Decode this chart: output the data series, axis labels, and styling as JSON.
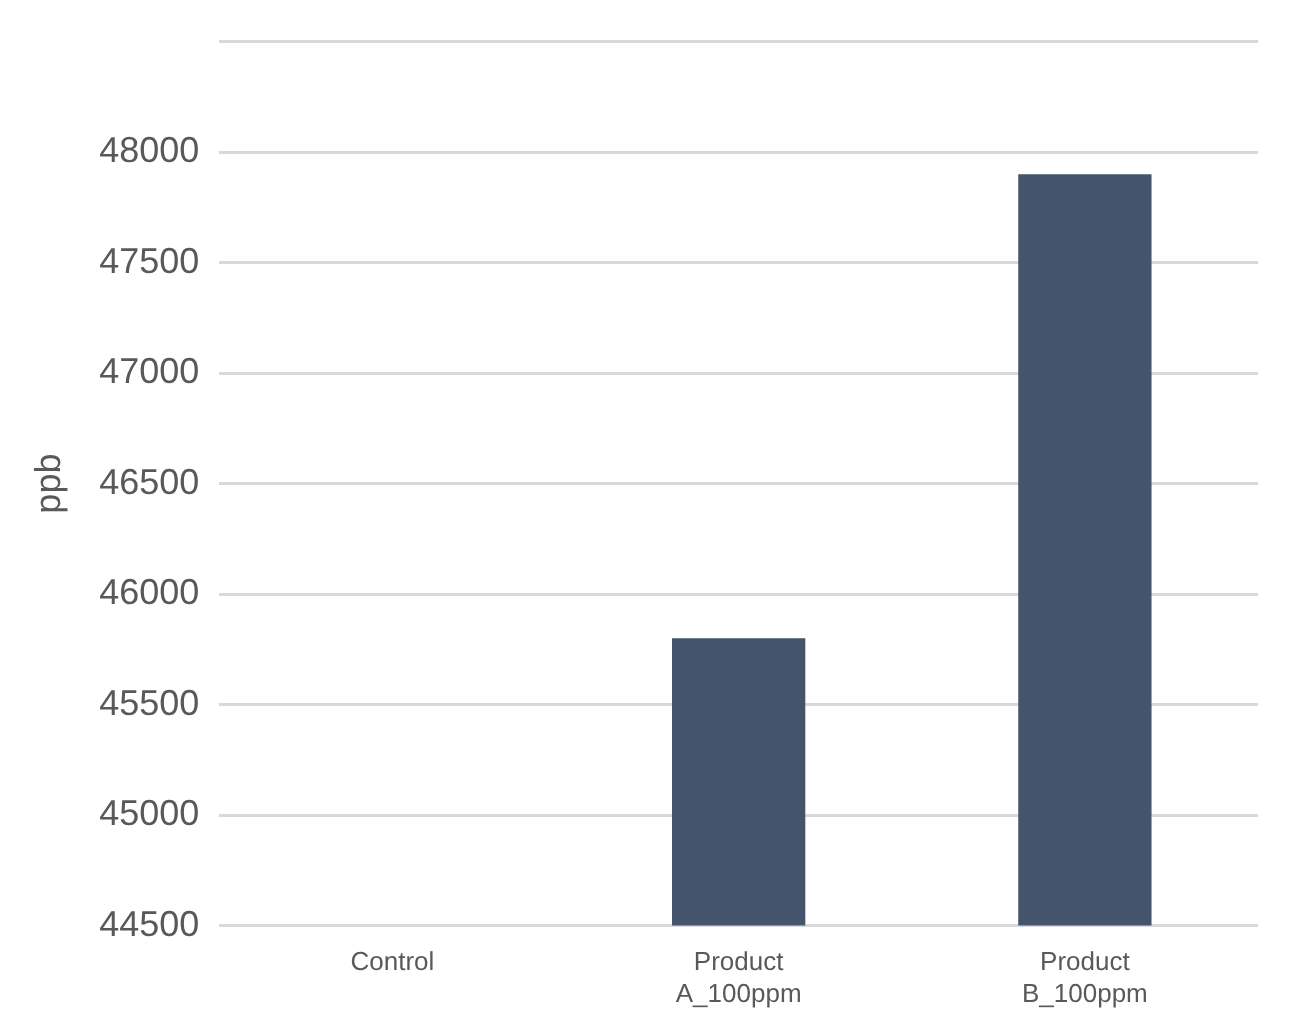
{
  "chart_data": {
    "type": "bar",
    "ylabel": "ppb",
    "categories": [
      "Control",
      "Product A_100ppm",
      "Product B_100ppm"
    ],
    "values": [
      null,
      45800,
      47900
    ],
    "color": "#44546a",
    "ylim": [
      44500,
      48500
    ],
    "yticks": [
      44500,
      45000,
      45500,
      46000,
      46500,
      47000,
      47500,
      48000,
      {
        "value": 48500,
        "label": null
      }
    ],
    "grid": "y",
    "legend": false
  }
}
